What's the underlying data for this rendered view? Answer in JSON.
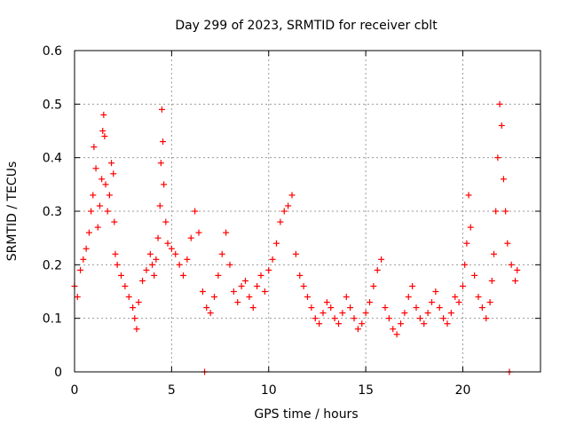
{
  "chart_data": {
    "type": "scatter",
    "title": "Day 299 of 2023, SRMTID for receiver cblt",
    "xlabel": "GPS time / hours",
    "ylabel": "SRMTID / TECUs",
    "xlim": [
      0,
      24.0
    ],
    "ylim": [
      0,
      0.6
    ],
    "xticks": [
      0,
      5,
      10,
      15,
      20
    ],
    "xtick_labels": [
      "0",
      "5",
      "10",
      "15",
      "20"
    ],
    "yticks": [
      0,
      0.1,
      0.2,
      0.3,
      0.4,
      0.5,
      0.6
    ],
    "ytick_labels": [
      "0",
      "0.1",
      "0.2",
      "0.3",
      "0.4",
      "0.5",
      "0.6"
    ],
    "grid": true,
    "marker": "+",
    "color": "#ff0000",
    "series": [
      {
        "name": "SRMTID",
        "x": [
          0.0,
          0.15,
          0.3,
          0.45,
          0.6,
          0.75,
          0.85,
          0.95,
          1.0,
          1.1,
          1.2,
          1.3,
          1.4,
          1.45,
          1.5,
          1.55,
          1.6,
          1.7,
          1.8,
          1.9,
          2.0,
          2.05,
          2.1,
          2.2,
          2.4,
          2.6,
          2.8,
          3.0,
          3.1,
          3.2,
          3.3,
          3.5,
          3.7,
          3.9,
          4.0,
          4.1,
          4.2,
          4.3,
          4.4,
          4.45,
          4.5,
          4.55,
          4.6,
          4.7,
          4.8,
          5.0,
          5.2,
          5.4,
          5.6,
          5.8,
          6.0,
          6.2,
          6.4,
          6.6,
          6.8,
          7.0,
          7.2,
          7.4,
          7.6,
          7.8,
          8.0,
          8.2,
          8.4,
          8.6,
          8.8,
          9.0,
          9.2,
          9.4,
          9.6,
          9.8,
          10.0,
          10.2,
          10.4,
          10.6,
          10.8,
          11.0,
          11.2,
          11.4,
          11.6,
          11.8,
          12.0,
          12.2,
          12.4,
          12.6,
          12.8,
          13.0,
          13.2,
          13.4,
          13.6,
          13.8,
          14.0,
          14.2,
          14.4,
          14.6,
          14.8,
          15.0,
          15.2,
          15.4,
          15.6,
          15.8,
          16.0,
          16.2,
          16.4,
          16.6,
          16.8,
          17.0,
          17.2,
          17.4,
          17.6,
          17.8,
          18.0,
          18.2,
          18.4,
          18.6,
          18.8,
          19.0,
          19.2,
          19.4,
          19.6,
          19.8,
          20.0,
          20.1,
          20.2,
          20.3,
          20.4,
          20.6,
          20.8,
          21.0,
          21.2,
          21.4,
          21.5,
          21.6,
          21.7,
          21.8,
          21.9,
          22.0,
          22.1,
          22.2,
          22.3,
          22.5,
          22.7,
          22.8,
          6.7,
          22.4
        ],
        "y": [
          0.16,
          0.14,
          0.19,
          0.21,
          0.23,
          0.26,
          0.3,
          0.33,
          0.42,
          0.38,
          0.27,
          0.31,
          0.36,
          0.45,
          0.48,
          0.44,
          0.35,
          0.3,
          0.33,
          0.39,
          0.37,
          0.28,
          0.22,
          0.2,
          0.18,
          0.16,
          0.14,
          0.12,
          0.1,
          0.08,
          0.13,
          0.17,
          0.19,
          0.22,
          0.2,
          0.18,
          0.21,
          0.25,
          0.31,
          0.39,
          0.49,
          0.43,
          0.35,
          0.28,
          0.24,
          0.23,
          0.22,
          0.2,
          0.18,
          0.21,
          0.25,
          0.3,
          0.26,
          0.15,
          0.12,
          0.11,
          0.14,
          0.18,
          0.22,
          0.26,
          0.2,
          0.15,
          0.13,
          0.16,
          0.17,
          0.14,
          0.12,
          0.16,
          0.18,
          0.15,
          0.19,
          0.21,
          0.24,
          0.28,
          0.3,
          0.31,
          0.33,
          0.22,
          0.18,
          0.16,
          0.14,
          0.12,
          0.1,
          0.09,
          0.11,
          0.13,
          0.12,
          0.1,
          0.09,
          0.11,
          0.14,
          0.12,
          0.1,
          0.08,
          0.09,
          0.11,
          0.13,
          0.16,
          0.19,
          0.21,
          0.12,
          0.1,
          0.08,
          0.07,
          0.09,
          0.11,
          0.14,
          0.16,
          0.12,
          0.1,
          0.09,
          0.11,
          0.13,
          0.15,
          0.12,
          0.1,
          0.09,
          0.11,
          0.14,
          0.13,
          0.16,
          0.2,
          0.24,
          0.33,
          0.27,
          0.18,
          0.14,
          0.12,
          0.1,
          0.13,
          0.17,
          0.22,
          0.3,
          0.4,
          0.5,
          0.46,
          0.36,
          0.3,
          0.24,
          0.2,
          0.17,
          0.19,
          0.0,
          0.0
        ]
      }
    ]
  }
}
